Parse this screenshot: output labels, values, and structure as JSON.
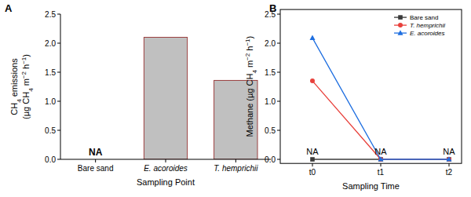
{
  "chart_data": [
    {
      "type": "bar",
      "title": "A",
      "categories": [
        "Bare sand",
        "E. acoroides",
        "T. hemprichii"
      ],
      "values": [
        null,
        2.1,
        1.36
      ],
      "color": "#c0c0c0",
      "ylim": [
        0,
        2.5
      ],
      "yticks": [
        {
          "value": 0,
          "label": "0.0"
        },
        {
          "value": 0.5,
          "label": "0.5"
        },
        {
          "value": 1,
          "label": "1.0"
        },
        {
          "value": 1.5,
          "label": "1.5"
        },
        {
          "value": 2,
          "label": "2.0"
        },
        {
          "value": 2.5,
          "label": "2.5"
        }
      ],
      "ylabel": "CH4 emissions (µg CH4 m−2 h−1)",
      "xlabel": "Sampling Point",
      "annotations": [
        {
          "text": "NA",
          "category": "Bare sand"
        }
      ]
    },
    {
      "type": "line",
      "title": "B",
      "categories": [
        "t0",
        "t1",
        "t2"
      ],
      "series": [
        {
          "name": "Bare sand",
          "color": "#3a3a3a",
          "marker": "square",
          "values": [
            0,
            0,
            0
          ]
        },
        {
          "name": "T. hemprichii",
          "color": "#e8413c",
          "marker": "circle",
          "values": [
            1.35,
            0,
            0
          ]
        },
        {
          "name": "E. acoroides",
          "color": "#1f6fe0",
          "marker": "triangle",
          "values": [
            2.09,
            0,
            0
          ]
        }
      ],
      "ylim": [
        -0.07,
        2.58
      ],
      "yticks": [
        {
          "value": 0,
          "label": "0.0"
        },
        {
          "value": 0.5,
          "label": "0.5"
        },
        {
          "value": 1,
          "label": "1.0"
        },
        {
          "value": 1.5,
          "label": "1.5"
        },
        {
          "value": 2,
          "label": "2.0"
        },
        {
          "value": 2.5,
          "label": "2.5"
        }
      ],
      "ylabel": "Methane (µg CH4 m−2 h−1)",
      "xlabel": "Sampling Time",
      "legend": "top-right",
      "annotations": [
        {
          "text": "NA",
          "category": "t0"
        },
        {
          "text": "NA",
          "category": "t1"
        },
        {
          "text": "NA",
          "category": "t2"
        }
      ]
    }
  ]
}
